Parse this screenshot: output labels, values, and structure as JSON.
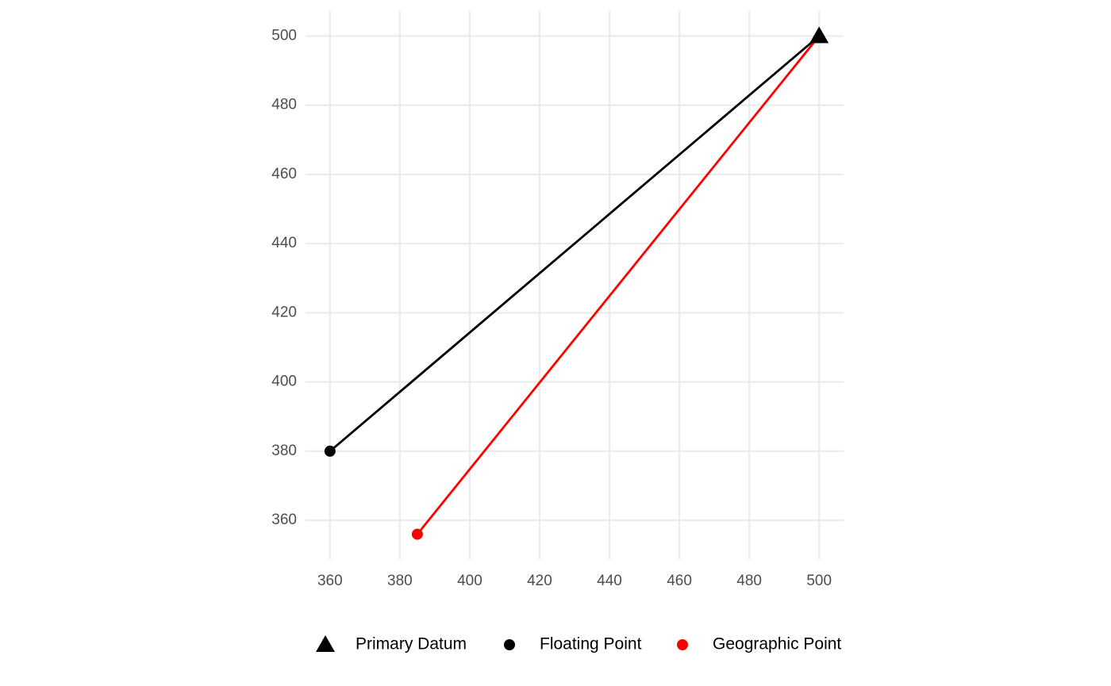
{
  "chart_data": {
    "type": "scatter",
    "xlim": [
      353,
      507
    ],
    "ylim": [
      348.8,
      507.2
    ],
    "xticks": [
      360,
      380,
      400,
      420,
      440,
      460,
      480,
      500
    ],
    "yticks": [
      360,
      380,
      400,
      420,
      440,
      460,
      480,
      500
    ],
    "grid": true,
    "legend": "bottom",
    "series": [
      {
        "name": "Primary Datum",
        "color": "#000000",
        "marker": "triangle",
        "x": [
          500
        ],
        "values": [
          500
        ]
      },
      {
        "name": "Floating Point",
        "color": "#000000",
        "marker": "circle",
        "x": [
          360
        ],
        "values": [
          380
        ]
      },
      {
        "name": "Geographic Point",
        "color": "#ff0000",
        "marker": "circle",
        "x": [
          385
        ],
        "values": [
          356
        ]
      }
    ],
    "segments": [
      {
        "color": "#000000",
        "x": [
          360,
          500
        ],
        "values": [
          380,
          500
        ]
      },
      {
        "color": "#ff0000",
        "x": [
          385,
          500
        ],
        "values": [
          356,
          500
        ]
      }
    ]
  }
}
